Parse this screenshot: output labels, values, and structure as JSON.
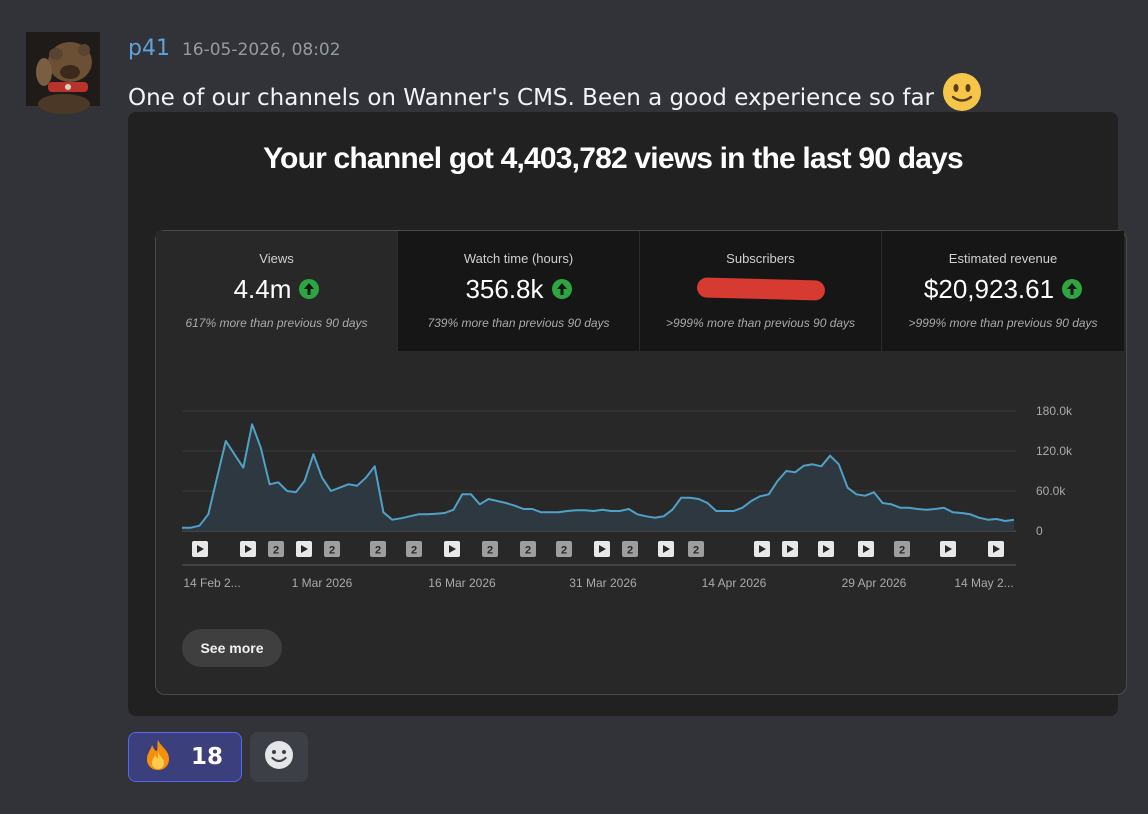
{
  "message": {
    "author": "p41",
    "timestamp": "16-05-2026, 08:02",
    "text": "One of our channels on Wanner's CMS. Been a good experience so far"
  },
  "embed": {
    "title": "Your channel got 4,403,782 views in the last 90 days",
    "tabs": [
      {
        "label": "Views",
        "value": "4.4m",
        "sub": "617% more than previous 90 days",
        "trend": "up"
      },
      {
        "label": "Watch time (hours)",
        "value": "356.8k",
        "sub": "739% more than previous 90 days",
        "trend": "up"
      },
      {
        "label": "Subscribers",
        "value": "",
        "sub": ">999% more than previous 90 days",
        "trend": "redacted"
      },
      {
        "label": "Estimated revenue",
        "value": "$20,923.61",
        "sub": ">999% more than previous 90 days",
        "trend": "up"
      }
    ],
    "see_more_label": "See more"
  },
  "chart_data": {
    "type": "area",
    "y_ticks": [
      "180.0k",
      "120.0k",
      "60.0k",
      "0"
    ],
    "ylim": [
      0,
      180000
    ],
    "x_tick_labels": [
      "14 Feb 2...",
      "1 Mar 2026",
      "16 Mar 2026",
      "31 Mar 2026",
      "14 Apr 2026",
      "29 Apr 2026",
      "14 May 2..."
    ],
    "values": [
      5000,
      5000,
      8000,
      25000,
      80000,
      135000,
      115000,
      95000,
      160000,
      125000,
      70000,
      73000,
      60000,
      58000,
      75000,
      115000,
      80000,
      60000,
      65000,
      70000,
      68000,
      80000,
      97000,
      28000,
      17000,
      19000,
      22000,
      25000,
      25000,
      26000,
      27000,
      32000,
      55000,
      55000,
      40000,
      48000,
      45000,
      42000,
      38000,
      33000,
      33000,
      28000,
      28000,
      28000,
      30000,
      31000,
      31000,
      30000,
      32000,
      30000,
      30000,
      33000,
      25000,
      22000,
      20000,
      22000,
      32000,
      50000,
      50000,
      48000,
      42000,
      30000,
      30000,
      30000,
      35000,
      45000,
      52000,
      55000,
      75000,
      90000,
      88000,
      98000,
      100000,
      97000,
      113000,
      100000,
      65000,
      55000,
      53000,
      58000,
      42000,
      40000,
      35000,
      35000,
      33000,
      32000,
      33000,
      35000,
      28000,
      27000,
      25000,
      20000,
      17000,
      18000,
      15000,
      17000
    ],
    "markers": [
      "play",
      "play",
      "2",
      "play",
      "2",
      "2",
      "2",
      "play",
      "2",
      "2",
      "2",
      "play",
      "2",
      "play",
      "2",
      "play",
      "play",
      "play",
      "play",
      "2",
      "play",
      "play"
    ],
    "line_color": "#4fa1c7",
    "fill_color": "#2f3a42"
  },
  "reactions": [
    {
      "icon": "fire-emoji",
      "count": "18"
    }
  ],
  "colors": {
    "username": "#5ea2d8",
    "up_trend": "#2ba640",
    "redaction": "#d63a30",
    "reaction_border": "#5865f2"
  }
}
